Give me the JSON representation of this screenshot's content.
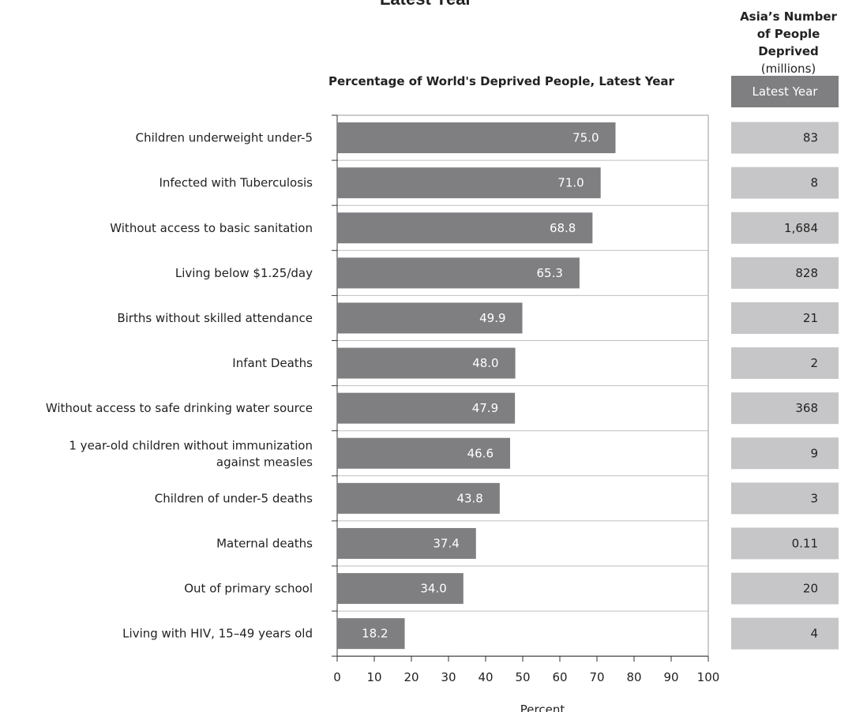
{
  "title": "Latest Year",
  "side_header": {
    "line1": "Asia’s Number",
    "line2": "of People Deprived",
    "line3": "(millions)",
    "column_label": "Latest Year"
  },
  "colors": {
    "bar": "#7f7f82",
    "side_box": "#c6c6c8",
    "side_header_box": "#7f7f82",
    "gridline": "#bfbfbf"
  },
  "chart_data": {
    "type": "bar",
    "orientation": "horizontal",
    "title": "Percentage of World's Deprived People, Latest Year",
    "xlabel": "Percent",
    "ylabel": "",
    "xlim": [
      0,
      100
    ],
    "xticks": [
      0,
      10,
      20,
      30,
      40,
      50,
      60,
      70,
      80,
      90,
      100
    ],
    "grid": "horizontal lines between categories",
    "categories": [
      [
        "Children underweight under-5"
      ],
      [
        "Infected with Tuberculosis"
      ],
      [
        "Without access to basic sanitation"
      ],
      [
        "Living below $1.25/day"
      ],
      [
        "Births without skilled  attendance"
      ],
      [
        "Infant Deaths"
      ],
      [
        "Without access to safe drinking water source"
      ],
      [
        "1 year-old children without immunization",
        "against measles"
      ],
      [
        "Children of under-5 deaths"
      ],
      [
        "Maternal deaths"
      ],
      [
        "Out of primary school"
      ],
      [
        "Living with HIV, 15–49 years old"
      ]
    ],
    "values": [
      75.0,
      71.0,
      68.8,
      65.3,
      49.9,
      48.0,
      47.9,
      46.6,
      43.8,
      37.4,
      34.0,
      18.2
    ],
    "value_labels": [
      "75.0",
      "71.0",
      "68.8",
      "65.3",
      "49.9",
      "48.0",
      "47.9",
      "46.6",
      "43.8",
      "37.4",
      "34.0",
      "18.2"
    ],
    "asia_people_deprived_millions": [
      "83",
      "8",
      "1,684",
      "828",
      "21",
      "2",
      "368",
      "9",
      "3",
      "0.11",
      "20",
      "4"
    ]
  }
}
